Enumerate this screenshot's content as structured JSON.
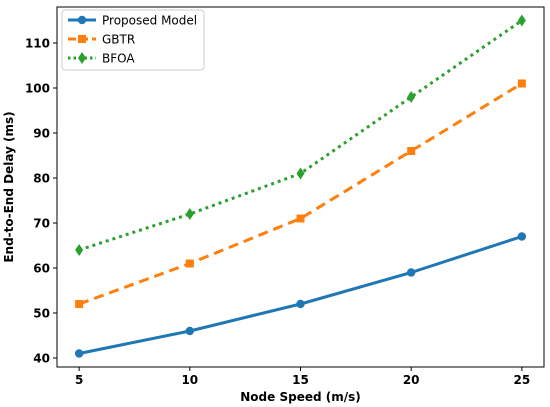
{
  "chart_data": {
    "type": "line",
    "xlabel": "Node Speed (m/s)",
    "ylabel": "End-to-End Delay (ms)",
    "x": [
      5,
      10,
      15,
      20,
      25
    ],
    "xticks": [
      "5",
      "10",
      "15",
      "20",
      "25"
    ],
    "yticks": [
      "40",
      "50",
      "60",
      "70",
      "80",
      "90",
      "100",
      "110"
    ],
    "xlim": [
      4,
      26
    ],
    "ylim": [
      38,
      118
    ],
    "grid": false,
    "legend_position": "upper-left",
    "series": [
      {
        "name": "Proposed Model",
        "values": [
          41,
          46,
          52,
          59,
          67
        ],
        "color": "#1f77b4",
        "linestyle": "solid",
        "marker": "circle"
      },
      {
        "name": "GBTR",
        "values": [
          52,
          61,
          71,
          86,
          101
        ],
        "color": "#ff7f0e",
        "linestyle": "dashed",
        "marker": "square"
      },
      {
        "name": "BFOA",
        "values": [
          64,
          72,
          81,
          98,
          115
        ],
        "color": "#2ca02c",
        "linestyle": "dotted",
        "marker": "diamond"
      }
    ]
  }
}
